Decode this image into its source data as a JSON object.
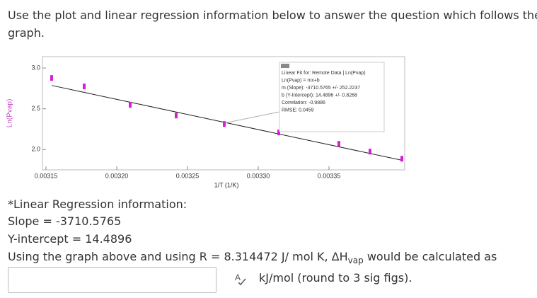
{
  "question": {
    "intro_1": "Use the plot and linear regression information below to answer the question which follows the",
    "intro_2": "graph.",
    "line_1": "*Linear Regression information:",
    "line_2": "Slope = -3710.5765",
    "line_3": "Y-intercept = 14.4896",
    "line_4a": "Using the graph above and using R = 8.314472 J/ mol K, ΔH",
    "line_4sub": "vap",
    "line_4b": " would be calculated as",
    "unit": "kJ/mol (round to 3 sig figs)."
  },
  "chart_data": {
    "type": "scatter",
    "x_label": "1/T (1/K)",
    "y_label": "Ln(Pvap)",
    "x": [
      0.003154,
      0.003177,
      0.0032095,
      0.003242,
      0.003276,
      0.0033145,
      0.003357,
      0.003379,
      0.0034015
    ],
    "values": [
      2.878,
      2.774,
      2.548,
      2.417,
      2.313,
      2.209,
      2.07,
      1.974,
      1.887
    ],
    "color": "#d61ed6",
    "xlim": [
      0.0031475,
      0.0034035
    ],
    "ylim": [
      1.75,
      3.14
    ],
    "xticks": [
      0.00315,
      {
        "value": 0.0032,
        "label": "0.00320"
      },
      0.00325,
      {
        "value": 0.0033,
        "label": "0.00330"
      },
      0.00335
    ],
    "yticks": [
      {
        "value": 2,
        "label": "2.0"
      },
      2.5,
      {
        "value": 3,
        "label": "3.0"
      }
    ],
    "grid": false,
    "fit": {
      "slope": -3710.5765,
      "intercept": 14.4896,
      "color": "#222222"
    },
    "fit_box": [
      "Linear Fit for: Remote Data | Ln(Pvap)",
      "Ln(Pvap) = mx+b",
      "m (Slope): -3710.5765 +/- 252.2237",
      "b (Y-Intercept): 14.4896 +/- 0.8268",
      "Correlation: -0.9886",
      "RMSE: 0.0459"
    ]
  }
}
